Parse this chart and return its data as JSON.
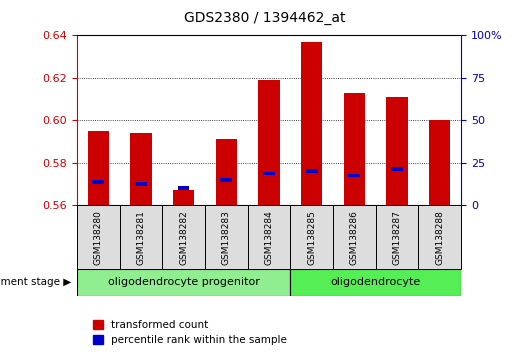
{
  "title": "GDS2380 / 1394462_at",
  "samples": [
    "GSM138280",
    "GSM138281",
    "GSM138282",
    "GSM138283",
    "GSM138284",
    "GSM138285",
    "GSM138286",
    "GSM138287",
    "GSM138288"
  ],
  "red_values": [
    0.595,
    0.594,
    0.567,
    0.591,
    0.619,
    0.637,
    0.613,
    0.611,
    0.6
  ],
  "blue_values": [
    0.571,
    0.57,
    0.568,
    0.572,
    0.575,
    0.576,
    0.574,
    0.577
  ],
  "blue_positions": [
    0,
    1,
    2,
    3,
    4,
    5,
    6,
    7
  ],
  "y_min": 0.56,
  "y_max": 0.64,
  "y_ticks": [
    0.56,
    0.58,
    0.6,
    0.62,
    0.64
  ],
  "right_y_ticks_pct": [
    0,
    25,
    50,
    75,
    100
  ],
  "right_y_labels": [
    "0",
    "25",
    "50",
    "75",
    "100%"
  ],
  "group1_label": "oligodendrocyte progenitor",
  "group1_samples": 5,
  "group2_label": "oligodendrocyte",
  "group2_samples": 4,
  "group1_color": "#90EE90",
  "group2_color": "#55EE55",
  "bar_width": 0.5,
  "red_color": "#CC0000",
  "blue_color": "#0000CC",
  "background_color": "#FFFFFF",
  "tick_label_color": "#CC0000",
  "right_tick_color": "#0000BB",
  "legend_red_label": "transformed count",
  "legend_blue_label": "percentile rank within the sample",
  "dev_stage_label": "development stage",
  "sample_box_color": "#DDDDDD"
}
